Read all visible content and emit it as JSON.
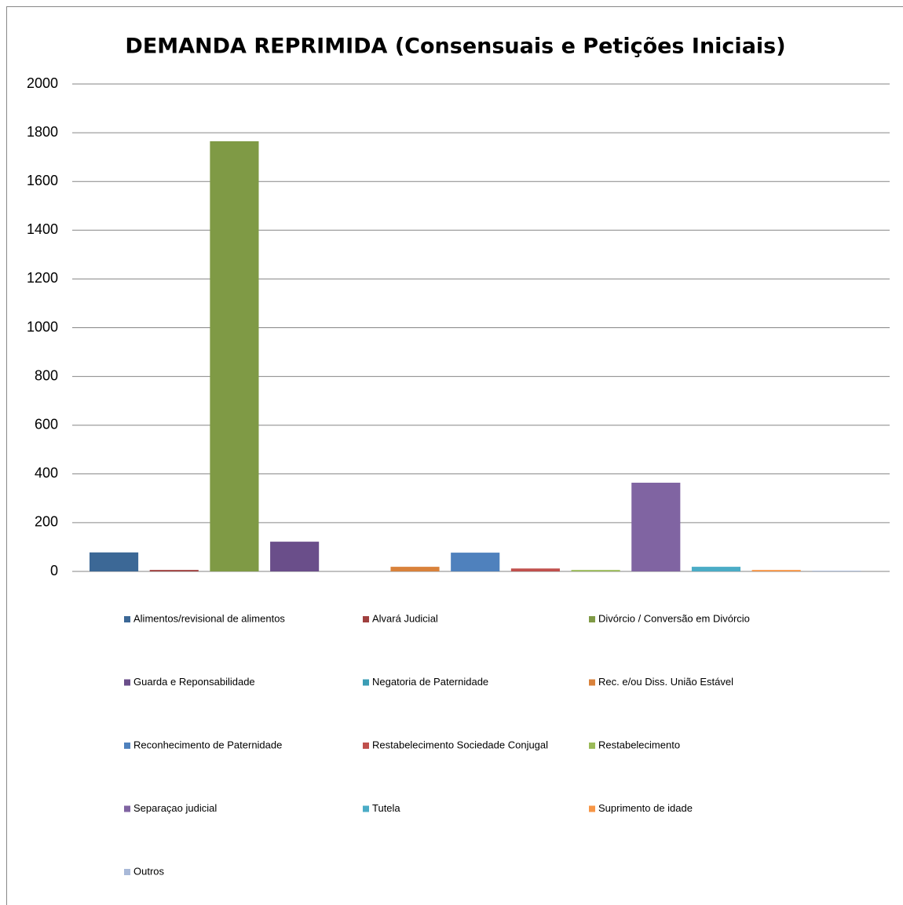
{
  "chart_data": {
    "type": "bar",
    "title": "DEMANDA REPRIMIDA (Consensuais e Petições Iniciais)",
    "categories": [
      null
    ],
    "series": [
      {
        "name": "Alimentos/revisional de alimentos",
        "color": "#3c6896",
        "values": [
          78
        ]
      },
      {
        "name": "Alvará Judicial",
        "color": "#a0403f",
        "values": [
          6
        ]
      },
      {
        "name": "Divórcio / Conversão em Divórcio",
        "color": "#7f9a45",
        "values": [
          1765
        ]
      },
      {
        "name": "Guarda e Reponsabilidade",
        "color": "#6a4e8a",
        "values": [
          122
        ]
      },
      {
        "name": "Negatoria de Paternidade",
        "color": "#3b9db5",
        "values": [
          0
        ]
      },
      {
        "name": "Rec. e/ou Diss. União Estável",
        "color": "#d9823b",
        "values": [
          19
        ]
      },
      {
        "name": "Reconhecimento de Paternidade",
        "color": "#4f81bd",
        "values": [
          77
        ]
      },
      {
        "name": "Restabelecimento Sociedade Conjugal",
        "color": "#c0504d",
        "values": [
          12
        ]
      },
      {
        "name": "Restabelecimento",
        "color": "#9bbb59",
        "values": [
          6
        ]
      },
      {
        "name": "Separaçao judicial",
        "color": "#8064a2",
        "values": [
          364
        ]
      },
      {
        "name": "Tutela",
        "color": "#4bacc6",
        "values": [
          19
        ]
      },
      {
        "name": "Suprimento de idade",
        "color": "#f79646",
        "values": [
          6
        ]
      },
      {
        "name": "Outros",
        "color": "#a9b9d8",
        "values": [
          3
        ]
      }
    ],
    "ylim": [
      0,
      2000
    ],
    "yticks": [
      0,
      200,
      400,
      600,
      800,
      1000,
      1200,
      1400,
      1600,
      1800,
      2000
    ],
    "grid": true,
    "legend": "bottom"
  }
}
